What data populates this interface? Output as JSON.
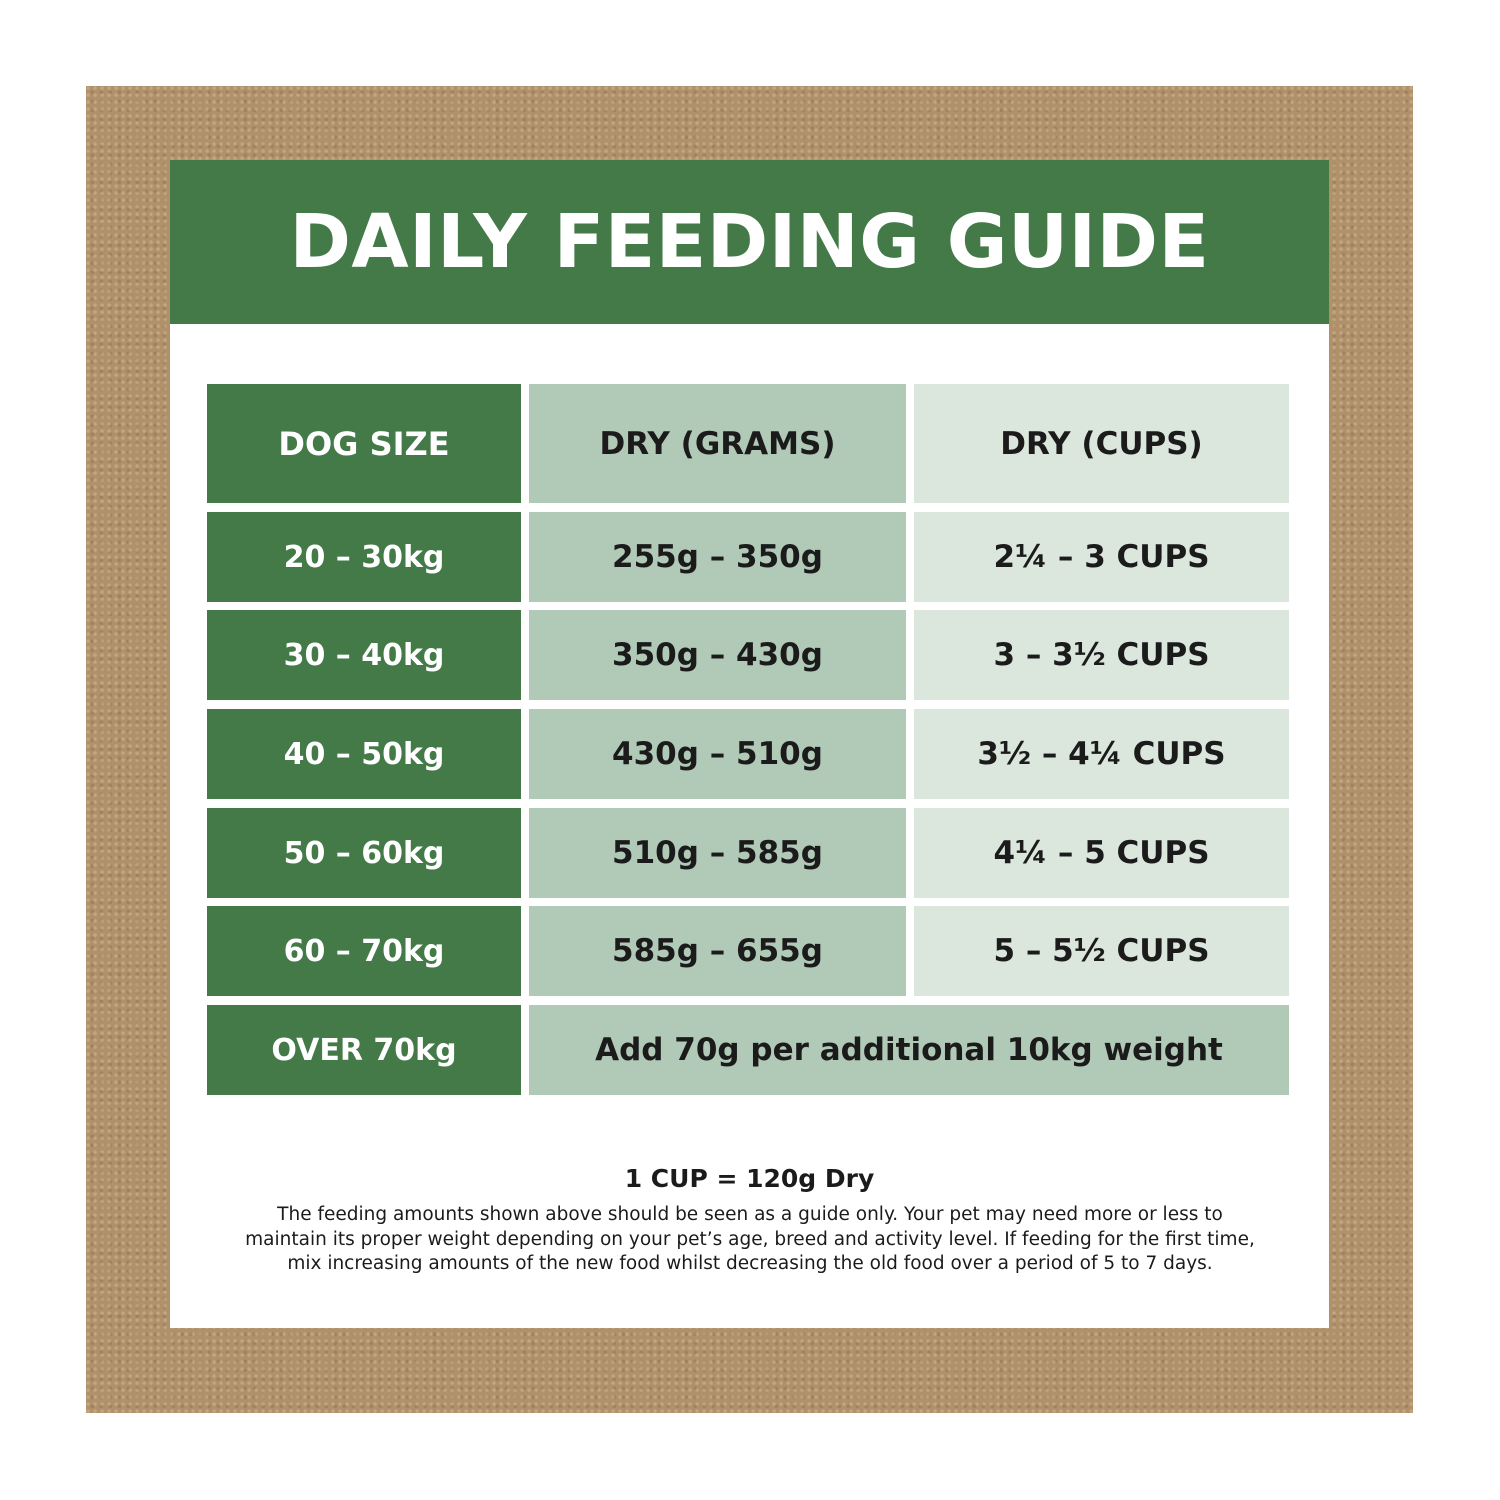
{
  "title": "DAILY FEEDING GUIDE",
  "table": {
    "headers": [
      "DOG SIZE",
      "DRY (GRAMS)",
      "DRY (CUPS)"
    ],
    "rows": [
      {
        "size": "20 – 30kg",
        "grams": "255g – 350g",
        "cups": "2¼ – 3 CUPS"
      },
      {
        "size": "30 – 40kg",
        "grams": "350g – 430g",
        "cups": "3 – 3½ CUPS"
      },
      {
        "size": "40 – 50kg",
        "grams": "430g – 510g",
        "cups": "3½ – 4¼ CUPS"
      },
      {
        "size": "50 – 60kg",
        "grams": "510g – 585g",
        "cups": "4¼ – 5 CUPS"
      },
      {
        "size": "60 – 70kg",
        "grams": "585g – 655g",
        "cups": "5 – 5½ CUPS"
      }
    ],
    "last_row": {
      "size": "OVER 70kg",
      "note": "Add 70g per additional 10kg weight"
    }
  },
  "footer": {
    "cup_conversion": "1 CUP = 120g Dry",
    "disclaimer_lines": [
      "The feeding amounts shown above should be seen as a guide only. Your pet may need more or less to",
      "maintain its proper weight depending on your pet’s age, breed and activity level. If feeding for the first time,",
      "mix increasing amounts of the new food whilst decreasing the old food over a period of 5 to 7 days."
    ]
  },
  "colors": {
    "frame": "#b0916a",
    "dark_green": "#437a48",
    "mid_green": "#b1c9b7",
    "light_green": "#dbe6dd"
  }
}
